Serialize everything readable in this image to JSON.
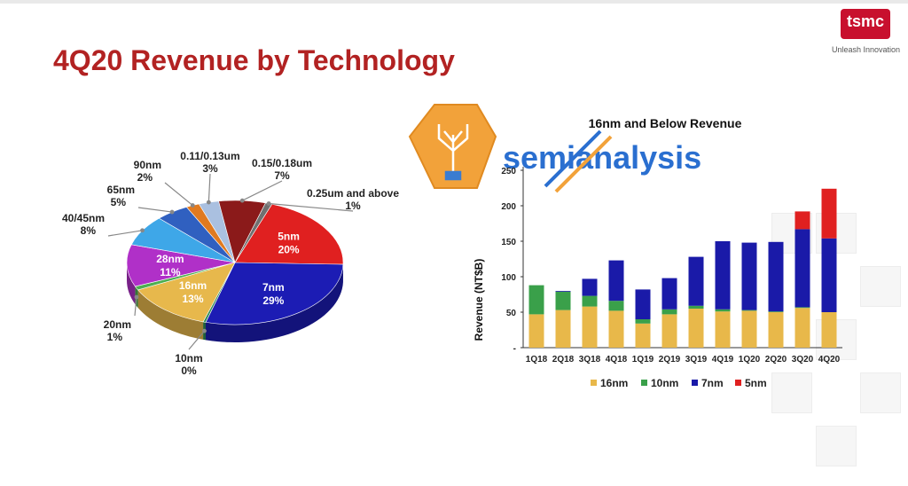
{
  "page": {
    "title": "4Q20 Revenue by Technology",
    "logo_text": "tsmc",
    "tagline": "Unleash Innovation",
    "watermark_text": "semianalysis"
  },
  "chart_data": [
    {
      "type": "pie",
      "slices": [
        {
          "name": "5nm",
          "label": "5nm",
          "value_label": "20%",
          "value": 20,
          "color": "#e02020"
        },
        {
          "name": "7nm",
          "label": "7nm",
          "value_label": "29%",
          "value": 29,
          "color": "#1c1cb4"
        },
        {
          "name": "10nm",
          "label": "10nm",
          "value_label": "0%",
          "value": 0,
          "color": "#2e8b57"
        },
        {
          "name": "16nm",
          "label": "16nm",
          "value_label": "13%",
          "value": 13,
          "color": "#e7b84c"
        },
        {
          "name": "20nm",
          "label": "20nm",
          "value_label": "1%",
          "value": 1,
          "color": "#4caf50"
        },
        {
          "name": "28nm",
          "label": "28nm",
          "value_label": "11%",
          "value": 11,
          "color": "#b030c8"
        },
        {
          "name": "40/45nm",
          "label": "40/45nm",
          "value_label": "8%",
          "value": 8,
          "color": "#3ea7e8"
        },
        {
          "name": "65nm",
          "label": "65nm",
          "value_label": "5%",
          "value": 5,
          "color": "#3060c0"
        },
        {
          "name": "90nm",
          "label": "90nm",
          "value_label": "2%",
          "value": 2,
          "color": "#e07a20"
        },
        {
          "name": "0.11/0.13um",
          "label": "0.11/0.13um",
          "value_label": "3%",
          "value": 3,
          "color": "#aac0e0"
        },
        {
          "name": "0.15/0.18um",
          "label": "0.15/0.18um",
          "value_label": "7%",
          "value": 7,
          "color": "#8b1a1a"
        },
        {
          "name": "0.25um and above",
          "label": "0.25um and above",
          "value_label": "1%",
          "value": 1,
          "color": "#707070"
        }
      ]
    },
    {
      "type": "bar",
      "stacked": true,
      "title": "16nm and Below Revenue",
      "ylabel": "Revenue (NT$B)",
      "ylim": [
        0,
        250
      ],
      "yticks": [
        "-",
        "50",
        "100",
        "150",
        "200",
        "250"
      ],
      "categories": [
        "1Q18",
        "2Q18",
        "3Q18",
        "4Q18",
        "1Q19",
        "2Q19",
        "3Q19",
        "4Q19",
        "1Q20",
        "2Q20",
        "3Q20",
        "4Q20"
      ],
      "series": [
        {
          "name": "16nm",
          "color": "#e8b84a",
          "values": [
            47,
            53,
            58,
            52,
            34,
            47,
            55,
            51,
            52,
            50,
            56,
            50
          ]
        },
        {
          "name": "10nm",
          "color": "#3aa04a",
          "values": [
            41,
            26,
            15,
            14,
            6,
            7,
            4,
            3,
            1,
            1,
            1,
            0
          ]
        },
        {
          "name": "7nm",
          "color": "#1a1aa8",
          "values": [
            0,
            1,
            24,
            57,
            42,
            44,
            69,
            96,
            95,
            98,
            110,
            104
          ]
        },
        {
          "name": "5nm",
          "color": "#e02020",
          "values": [
            0,
            0,
            0,
            0,
            0,
            0,
            0,
            0,
            0,
            0,
            25,
            70
          ]
        }
      ]
    }
  ]
}
